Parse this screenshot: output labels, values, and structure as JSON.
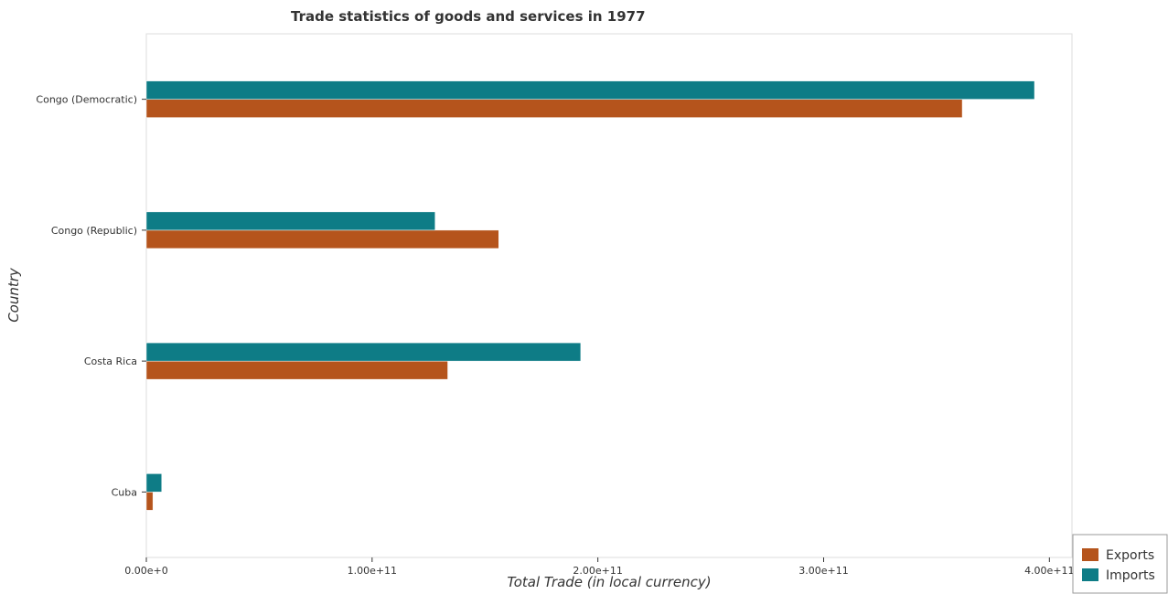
{
  "chart_data": {
    "type": "bar",
    "orientation": "horizontal",
    "title": "Trade statistics of goods and services in 1977",
    "xlabel": "Total Trade (in local currency)",
    "ylabel": "Country",
    "categories": [
      "Congo (Democratic)",
      "Congo (Republic)",
      "Costa Rica",
      "Cuba"
    ],
    "series": [
      {
        "name": "Exports",
        "color": "#b5541c",
        "values": [
          361400000000,
          156100000000,
          133500000000,
          2900000000
        ]
      },
      {
        "name": "Imports",
        "color": "#0e7c86",
        "values": [
          393400000000,
          127900000000,
          192400000000,
          6800000000
        ]
      }
    ],
    "xlim": [
      0,
      410000000000
    ],
    "xticks": [
      0,
      100000000000,
      200000000000,
      300000000000,
      400000000000
    ],
    "xtick_labels": [
      "0.00e+0",
      "1.00e+11",
      "2.00e+11",
      "3.00e+11",
      "4.00e+11"
    ],
    "legend_position": "bottom-right",
    "grid": false
  }
}
